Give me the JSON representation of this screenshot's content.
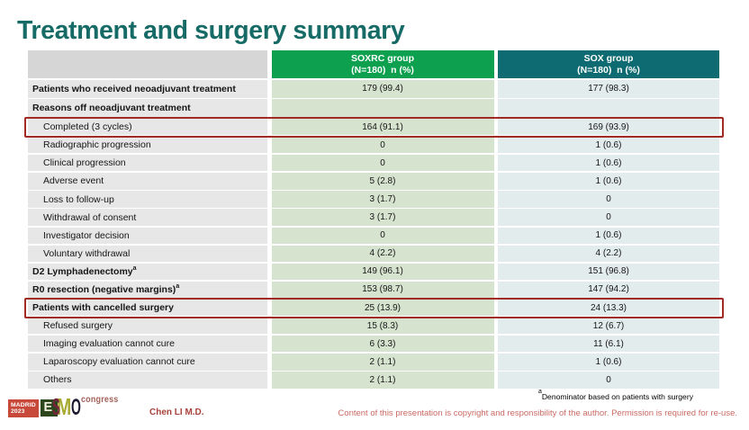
{
  "slide": {
    "title": "Treatment and surgery summary",
    "presenter": "Chen LI M.D.",
    "footnote": {
      "sup": "a",
      "text": "Denominator based on patients with surgery"
    },
    "copyright": "Content of this presentation is copyright and responsibility of the author. Permission is required for re-use."
  },
  "logo": {
    "city": "MADRID",
    "year": "2023",
    "letters": {
      "l1": "E",
      "l2": "S",
      "l3": "M",
      "l4": "O"
    },
    "congress": "congress"
  },
  "table": {
    "columns": [
      {
        "line1": "SOXRC group",
        "line2": "(N=180)  n (%)"
      },
      {
        "line1": "SOX group",
        "line2": "(N=180)  n (%)"
      }
    ],
    "rows": [
      {
        "label": "Patients who received neoadjuvant treatment",
        "sup": "",
        "soxrc": "179 (99.4)",
        "sox": "177 (98.3)",
        "style": "cat",
        "highlight": false
      },
      {
        "label": "Reasons off neoadjuvant treatment",
        "sup": "",
        "soxrc": "",
        "sox": "",
        "style": "cat",
        "highlight": false
      },
      {
        "label": "Completed (3 cycles)",
        "sup": "",
        "soxrc": "164 (91.1)",
        "sox": "169 (93.9)",
        "style": "sub",
        "highlight": true
      },
      {
        "label": "Radiographic progression",
        "sup": "",
        "soxrc": "0",
        "sox": "1 (0.6)",
        "style": "sub",
        "highlight": false
      },
      {
        "label": "Clinical progression",
        "sup": "",
        "soxrc": "0",
        "sox": "1 (0.6)",
        "style": "sub",
        "highlight": false
      },
      {
        "label": "Adverse event",
        "sup": "",
        "soxrc": "5 (2.8)",
        "sox": "1 (0.6)",
        "style": "sub",
        "highlight": false
      },
      {
        "label": "Loss to follow-up",
        "sup": "",
        "soxrc": "3 (1.7)",
        "sox": "0",
        "style": "sub",
        "highlight": false
      },
      {
        "label": "Withdrawal of consent",
        "sup": "",
        "soxrc": "3 (1.7)",
        "sox": "0",
        "style": "sub",
        "highlight": false
      },
      {
        "label": "Investigator decision",
        "sup": "",
        "soxrc": "0",
        "sox": "1 (0.6)",
        "style": "sub",
        "highlight": false
      },
      {
        "label": "Voluntary withdrawal",
        "sup": "",
        "soxrc": "4 (2.2)",
        "sox": "4 (2.2)",
        "style": "sub",
        "highlight": false
      },
      {
        "label": "D2 Lymphadenectomy",
        "sup": "a",
        "soxrc": "149 (96.1)",
        "sox": "151 (96.8)",
        "style": "cat",
        "highlight": false
      },
      {
        "label": "R0 resection (negative margins)",
        "sup": "a",
        "soxrc": "153 (98.7)",
        "sox": "147 (94.2)",
        "style": "cat",
        "highlight": false
      },
      {
        "label": "Patients with cancelled surgery",
        "sup": "",
        "soxrc": "25 (13.9)",
        "sox": "24 (13.3)",
        "style": "cat",
        "highlight": true
      },
      {
        "label": "Refused surgery",
        "sup": "",
        "soxrc": "15 (8.3)",
        "sox": "12 (6.7)",
        "style": "sub",
        "highlight": false
      },
      {
        "label": "Imaging evaluation cannot cure",
        "sup": "",
        "soxrc": "6 (3.3)",
        "sox": "11 (6.1)",
        "style": "sub",
        "highlight": false
      },
      {
        "label": "Laparoscopy evaluation cannot cure",
        "sup": "",
        "soxrc": "2 (1.1)",
        "sox": "1 (0.6)",
        "style": "sub",
        "highlight": false
      },
      {
        "label": "Others",
        "sup": "",
        "soxrc": "2 (1.1)",
        "sox": "0",
        "style": "sub",
        "highlight": false
      }
    ]
  },
  "colors": {
    "title": "#176B66",
    "header_green": "#0CA04F",
    "header_teal": "#0E6B71",
    "header_gray": "#D6D6D6",
    "cell_green": "#D6E3CF",
    "cell_teal": "#E2ECED",
    "cell_gray": "#E7E7E7",
    "highlight_red": "#A12A24",
    "esmo_red_box": "#C74B3B",
    "copyright_text": "#C8655F",
    "presenter_text": "#A8433C"
  }
}
